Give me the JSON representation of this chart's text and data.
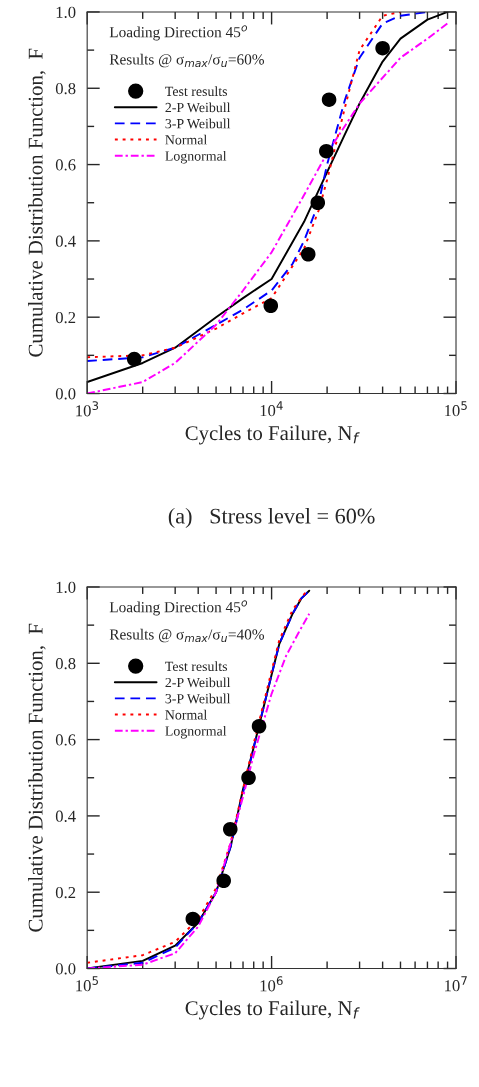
{
  "chart_data": [
    {
      "type": "line",
      "annotations": [
        "Loading Direction 45$^{o}$",
        "Results @ σ$_{max}$/σ$_{u}$=60%",
        "(a)   Stress level = 60%"
      ],
      "xlabel": "Cycles to Failure, N$_{f}$",
      "ylabel": "Cumulative Distribution Function,  F",
      "log": "x",
      "xlim": [
        1000,
        100000
      ],
      "xticks": [
        {
          "value": 1000,
          "label": "10$^{3}$"
        },
        {
          "value": 10000,
          "label": "10$^{4}$"
        },
        {
          "value": 100000,
          "label": "10$^{5}$"
        }
      ],
      "ylim": [
        0,
        1
      ],
      "yticks": [
        {
          "value": 0,
          "label": "0.0"
        },
        {
          "value": 0.2,
          "label": "0.2"
        },
        {
          "value": 0.4,
          "label": "0.4"
        },
        {
          "value": 0.6,
          "label": "0.6"
        },
        {
          "value": 0.8,
          "label": "0.8"
        },
        {
          "value": 1,
          "label": "1.0"
        }
      ],
      "grid": false,
      "legend": "top left",
      "series": [
        {
          "name": "Test results",
          "type": "scatter",
          "marker": "circle",
          "color": "#000000",
          "x": [
            1800,
            9900,
            15800,
            17800,
            19800,
            20500,
            40000
          ],
          "values": [
            0.09,
            0.23,
            0.365,
            0.5,
            0.635,
            0.77,
            0.905
          ]
        },
        {
          "name": "2-P Weibull",
          "line_style": "solid",
          "color": "#000000",
          "x": [
            1000,
            2000,
            3000,
            5000,
            7000,
            10000,
            15000,
            20000,
            25000,
            30000,
            40000,
            50000,
            70000,
            90000
          ],
          "values": [
            0.03,
            0.08,
            0.12,
            0.2,
            0.25,
            0.3,
            0.45,
            0.58,
            0.68,
            0.76,
            0.87,
            0.93,
            0.98,
            1.0
          ]
        },
        {
          "name": "3-P Weibull",
          "line_style": "dashed",
          "color": "#0000ff",
          "x": [
            1000,
            2000,
            3000,
            5000,
            7000,
            10000,
            13000,
            15000,
            18000,
            20000,
            25000,
            30000,
            40000,
            50000,
            70000
          ],
          "values": [
            0.085,
            0.095,
            0.12,
            0.18,
            0.22,
            0.27,
            0.34,
            0.4,
            0.5,
            0.6,
            0.77,
            0.88,
            0.97,
            0.99,
            1.0
          ]
        },
        {
          "name": "Normal",
          "line_style": "dotted",
          "color": "#ff0000",
          "x": [
            1000,
            2000,
            3000,
            5000,
            7000,
            10000,
            15000,
            18000,
            20000,
            25000,
            30000,
            40000,
            50000
          ],
          "values": [
            0.095,
            0.1,
            0.12,
            0.17,
            0.21,
            0.25,
            0.38,
            0.48,
            0.56,
            0.75,
            0.9,
            0.99,
            1.0
          ]
        },
        {
          "name": "Lognormal",
          "line_style": "dashdot",
          "color": "#ff00ff",
          "x": [
            1000,
            2000,
            3000,
            5000,
            7000,
            10000,
            15000,
            20000,
            30000,
            50000,
            70000,
            90000
          ],
          "values": [
            0.0,
            0.03,
            0.08,
            0.18,
            0.27,
            0.37,
            0.52,
            0.63,
            0.76,
            0.88,
            0.93,
            0.97
          ]
        }
      ]
    },
    {
      "type": "line",
      "annotations": [
        "Loading Direction 45$^{o}$",
        "Results @ σ$_{max}$/σ$_{u}$=40%"
      ],
      "xlabel": "Cycles to Failure, N$_{f}$",
      "ylabel": "Cumulative Distribution Function,  F",
      "log": "x",
      "xlim": [
        100000,
        10000000
      ],
      "xticks": [
        {
          "value": 100000,
          "label": "10$^{5}$"
        },
        {
          "value": 1000000,
          "label": "10$^{6}$"
        },
        {
          "value": 10000000,
          "label": "10$^{7}$"
        }
      ],
      "ylim": [
        0,
        1
      ],
      "yticks": [
        {
          "value": 0,
          "label": "0.0"
        },
        {
          "value": 0.2,
          "label": "0.2"
        },
        {
          "value": 0.4,
          "label": "0.4"
        },
        {
          "value": 0.6,
          "label": "0.6"
        },
        {
          "value": 0.8,
          "label": "0.8"
        },
        {
          "value": 1,
          "label": "1.0"
        }
      ],
      "grid": false,
      "legend": "top left",
      "series": [
        {
          "name": "Test results",
          "type": "scatter",
          "marker": "circle",
          "color": "#000000",
          "x": [
            374000,
            550000,
            597000,
            750000,
            855000
          ],
          "values": [
            0.13,
            0.23,
            0.365,
            0.5,
            0.635
          ]
        },
        {
          "name": "2-P Weibull",
          "line_style": "solid",
          "color": "#000000",
          "x": [
            100000,
            200000,
            300000,
            400000,
            500000,
            600000,
            700000,
            800000,
            900000,
            1000000,
            1100000,
            1300000,
            1450000,
            1600000
          ],
          "values": [
            0.0,
            0.02,
            0.06,
            0.12,
            0.2,
            0.32,
            0.47,
            0.58,
            0.68,
            0.77,
            0.85,
            0.93,
            0.97,
            0.99
          ]
        },
        {
          "name": "3-P Weibull",
          "line_style": "dashed",
          "color": "#0000ff",
          "x": [
            100000,
            200000,
            300000,
            400000,
            500000,
            600000,
            700000,
            800000,
            900000,
            1000000,
            1100000,
            1300000,
            1450000,
            1600000
          ],
          "values": [
            0.0,
            0.015,
            0.055,
            0.12,
            0.2,
            0.32,
            0.46,
            0.58,
            0.68,
            0.77,
            0.85,
            0.93,
            0.97,
            0.99
          ]
        },
        {
          "name": "Normal",
          "line_style": "dotted",
          "color": "#ff0000",
          "x": [
            100000,
            200000,
            300000,
            400000,
            500000,
            600000,
            700000,
            800000,
            900000,
            1000000,
            1100000,
            1300000,
            1550000
          ],
          "values": [
            0.015,
            0.035,
            0.07,
            0.13,
            0.21,
            0.33,
            0.47,
            0.59,
            0.69,
            0.78,
            0.86,
            0.94,
            0.99
          ]
        },
        {
          "name": "Lognormal",
          "line_style": "dashdot",
          "color": "#ff00ff",
          "x": [
            100000,
            200000,
            300000,
            400000,
            500000,
            600000,
            700000,
            800000,
            1000000,
            1200000,
            1400000,
            1600000
          ],
          "values": [
            0.0,
            0.01,
            0.04,
            0.11,
            0.2,
            0.33,
            0.45,
            0.56,
            0.72,
            0.82,
            0.88,
            0.93
          ]
        }
      ]
    }
  ]
}
